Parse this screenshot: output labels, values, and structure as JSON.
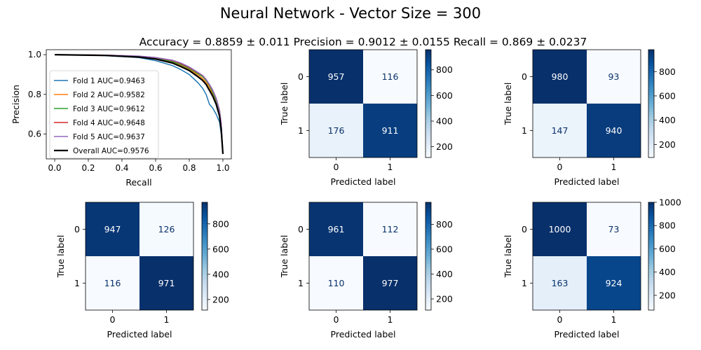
{
  "figure": {
    "title": "Neural Network - Vector Size = 300",
    "subtitle": "Accuracy = 0.8859 ± 0.011 Precision = 0.9012 ± 0.0155 Recall = 0.869 ± 0.0237"
  },
  "chart_data": [
    {
      "type": "line",
      "xlabel": "Recall",
      "ylabel": "Precision",
      "xlim": [
        -0.05,
        1.05
      ],
      "ylim": [
        0.475,
        1.025
      ],
      "xticks": [
        "0.0",
        "0.2",
        "0.4",
        "0.6",
        "0.8",
        "1.0"
      ],
      "yticks": [
        "0.6",
        "0.8",
        "1.0"
      ],
      "legend_position": "lower-left",
      "series": [
        {
          "name": "Fold 1 AUC=0.9463",
          "color": "#1f77b4",
          "x": [
            0.0,
            0.3,
            0.5,
            0.6,
            0.7,
            0.75,
            0.8,
            0.85,
            0.88,
            0.9,
            0.92,
            0.94,
            0.96,
            0.98,
            0.99,
            1.0
          ],
          "y": [
            1.0,
            0.995,
            0.985,
            0.97,
            0.945,
            0.925,
            0.9,
            0.86,
            0.83,
            0.8,
            0.75,
            0.73,
            0.7,
            0.66,
            0.6,
            0.5
          ]
        },
        {
          "name": "Fold 2 AUC=0.9582",
          "color": "#ff7f0e",
          "x": [
            0.0,
            0.3,
            0.5,
            0.6,
            0.7,
            0.75,
            0.8,
            0.85,
            0.88,
            0.9,
            0.92,
            0.94,
            0.96,
            0.98,
            0.99,
            1.0
          ],
          "y": [
            1.0,
            0.997,
            0.99,
            0.98,
            0.96,
            0.945,
            0.925,
            0.9,
            0.88,
            0.86,
            0.835,
            0.8,
            0.76,
            0.7,
            0.63,
            0.5
          ]
        },
        {
          "name": "Fold 3 AUC=0.9612",
          "color": "#2ca02c",
          "x": [
            0.0,
            0.3,
            0.5,
            0.6,
            0.7,
            0.75,
            0.8,
            0.85,
            0.88,
            0.9,
            0.92,
            0.94,
            0.96,
            0.98,
            0.99,
            1.0
          ],
          "y": [
            1.0,
            0.997,
            0.99,
            0.982,
            0.965,
            0.95,
            0.93,
            0.905,
            0.89,
            0.87,
            0.845,
            0.81,
            0.77,
            0.71,
            0.64,
            0.5
          ]
        },
        {
          "name": "Fold 4 AUC=0.9648",
          "color": "#d62728",
          "x": [
            0.0,
            0.3,
            0.5,
            0.6,
            0.7,
            0.75,
            0.8,
            0.85,
            0.88,
            0.9,
            0.92,
            0.94,
            0.96,
            0.98,
            0.99,
            1.0
          ],
          "y": [
            1.0,
            0.998,
            0.992,
            0.985,
            0.97,
            0.955,
            0.935,
            0.91,
            0.895,
            0.875,
            0.85,
            0.82,
            0.78,
            0.72,
            0.65,
            0.5
          ]
        },
        {
          "name": "Fold 5 AUC=0.9637",
          "color": "#9467bd",
          "x": [
            0.0,
            0.3,
            0.5,
            0.6,
            0.7,
            0.75,
            0.8,
            0.85,
            0.88,
            0.9,
            0.92,
            0.94,
            0.96,
            0.98,
            0.99,
            1.0
          ],
          "y": [
            1.0,
            0.998,
            0.993,
            0.986,
            0.972,
            0.958,
            0.938,
            0.912,
            0.895,
            0.875,
            0.85,
            0.82,
            0.78,
            0.72,
            0.65,
            0.5
          ]
        },
        {
          "name": "Overall AUC=0.9576",
          "color": "#000000",
          "width": 2.2,
          "x": [
            0.0,
            0.3,
            0.5,
            0.6,
            0.7,
            0.75,
            0.8,
            0.85,
            0.88,
            0.9,
            0.92,
            0.94,
            0.96,
            0.98,
            0.99,
            1.0
          ],
          "y": [
            1.0,
            0.996,
            0.988,
            0.978,
            0.958,
            0.94,
            0.92,
            0.89,
            0.87,
            0.85,
            0.82,
            0.79,
            0.75,
            0.69,
            0.62,
            0.5
          ]
        }
      ]
    },
    {
      "type": "heatmap",
      "matrix": [
        [
          957,
          116
        ],
        [
          176,
          911
        ]
      ],
      "colorbar_ticks": [
        200,
        400,
        600,
        800
      ],
      "colorbar_range": [
        116,
        957
      ],
      "xlabel": "Predicted label",
      "ylabel": "True label",
      "xticks": [
        "0",
        "1"
      ],
      "yticks": [
        "0",
        "1"
      ]
    },
    {
      "type": "heatmap",
      "matrix": [
        [
          980,
          93
        ],
        [
          147,
          940
        ]
      ],
      "colorbar_ticks": [
        200,
        400,
        600,
        800
      ],
      "colorbar_range": [
        93,
        980
      ],
      "xlabel": "Predicted label",
      "ylabel": "True label",
      "xticks": [
        "0",
        "1"
      ],
      "yticks": [
        "0",
        "1"
      ]
    },
    {
      "type": "heatmap",
      "matrix": [
        [
          947,
          126
        ],
        [
          116,
          971
        ]
      ],
      "colorbar_ticks": [
        200,
        400,
        600,
        800
      ],
      "colorbar_range": [
        116,
        971
      ],
      "xlabel": "Predicted label",
      "ylabel": "True label",
      "xticks": [
        "0",
        "1"
      ],
      "yticks": [
        "0",
        "1"
      ]
    },
    {
      "type": "heatmap",
      "matrix": [
        [
          961,
          112
        ],
        [
          110,
          977
        ]
      ],
      "colorbar_ticks": [
        200,
        400,
        600,
        800
      ],
      "colorbar_range": [
        110,
        977
      ],
      "xlabel": "Predicted label",
      "ylabel": "True label",
      "xticks": [
        "0",
        "1"
      ],
      "yticks": [
        "0",
        "1"
      ]
    },
    {
      "type": "heatmap",
      "matrix": [
        [
          1000,
          73
        ],
        [
          163,
          924
        ]
      ],
      "colorbar_ticks": [
        200,
        400,
        600,
        800,
        1000
      ],
      "colorbar_range": [
        73,
        1000
      ],
      "xlabel": "Predicted label",
      "ylabel": "True label",
      "xticks": [
        "0",
        "1"
      ],
      "yticks": [
        "0",
        "1"
      ]
    }
  ]
}
